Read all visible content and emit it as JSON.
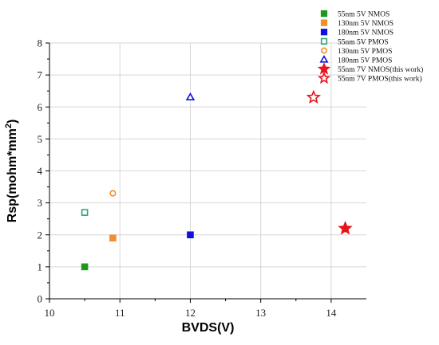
{
  "chart_data": {
    "type": "scatter",
    "xlabel": "BVDS(V)",
    "ylabel": "Rsp(mohm*mm",
    "ylabel_sup": "2",
    "ylabel_close": ")",
    "xlim": [
      10,
      14.5
    ],
    "ylim": [
      0,
      8
    ],
    "x_ticks": [
      "10",
      "11",
      "12",
      "13",
      "14"
    ],
    "y_ticks": [
      "0",
      "1",
      "2",
      "3",
      "4",
      "5",
      "6",
      "7",
      "8"
    ],
    "grid": true,
    "legend_position": "top-right",
    "series": [
      {
        "name": "55nm 5V NMOS",
        "marker": "square",
        "filled": true,
        "color": "#1a9a1a",
        "points": [
          {
            "x": 10.5,
            "y": 1.0
          }
        ]
      },
      {
        "name": "130nm 5V NMOS",
        "marker": "square",
        "filled": true,
        "color": "#f28e2b",
        "points": [
          {
            "x": 10.9,
            "y": 1.9
          }
        ]
      },
      {
        "name": "180nm 5V NMOS",
        "marker": "square",
        "filled": true,
        "color": "#1010e0",
        "points": [
          {
            "x": 12.0,
            "y": 2.0
          }
        ]
      },
      {
        "name": "55nm 5V PMOS",
        "marker": "square",
        "filled": false,
        "color": "#2aa67a",
        "points": [
          {
            "x": 10.5,
            "y": 2.7
          }
        ]
      },
      {
        "name": "130nm 5V PMOS",
        "marker": "circle",
        "filled": false,
        "color": "#f28e2b",
        "points": [
          {
            "x": 10.9,
            "y": 3.3
          }
        ]
      },
      {
        "name": "180nm 5V PMOS",
        "marker": "triangle",
        "filled": false,
        "color": "#1010e0",
        "points": [
          {
            "x": 12.0,
            "y": 6.3
          }
        ]
      },
      {
        "name": "55nm 7V NMOS(this work)",
        "marker": "star",
        "filled": true,
        "color": "#e8141b",
        "points": [
          {
            "x": 14.2,
            "y": 2.2
          }
        ]
      },
      {
        "name": "55nm 7V PMOS(this work)",
        "marker": "star",
        "filled": false,
        "color": "#e8141b",
        "points": [
          {
            "x": 13.75,
            "y": 6.3
          }
        ]
      }
    ]
  }
}
